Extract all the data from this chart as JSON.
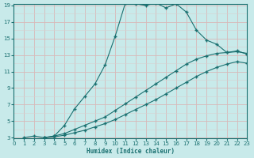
{
  "xlabel": "Humidex (Indice chaleur)",
  "xlim": [
    0,
    23
  ],
  "ylim": [
    3,
    19
  ],
  "xticks": [
    0,
    1,
    2,
    3,
    4,
    5,
    6,
    7,
    8,
    9,
    10,
    11,
    12,
    13,
    14,
    15,
    16,
    17,
    18,
    19,
    20,
    21,
    22,
    23
  ],
  "yticks": [
    3,
    5,
    7,
    9,
    11,
    13,
    15,
    17,
    19
  ],
  "bg_color": "#c8eaea",
  "grid_major_color": "#d8b8b8",
  "grid_minor_color": "#d8d0d0",
  "line_color": "#1a7070",
  "line1_x": [
    1,
    2,
    3,
    4,
    5,
    6,
    7,
    8,
    9,
    10,
    11,
    12,
    13,
    14,
    15,
    16,
    17,
    18,
    19,
    20,
    21,
    22,
    23
  ],
  "line1_y": [
    3,
    3.2,
    3.0,
    3.2,
    4.5,
    6.5,
    8.0,
    9.5,
    11.8,
    15.3,
    19.3,
    19.2,
    19.0,
    19.3,
    18.7,
    19.2,
    18.2,
    16.0,
    14.8,
    14.3,
    13.3,
    13.5,
    13.1
  ],
  "line2_x": [
    3,
    4,
    5,
    6,
    7,
    8,
    9,
    10,
    11,
    12,
    13,
    14,
    15,
    16,
    17,
    18,
    19,
    20,
    21,
    22,
    23
  ],
  "line2_y": [
    3,
    3.2,
    3.5,
    4.0,
    4.5,
    5.0,
    5.5,
    6.3,
    7.1,
    7.9,
    8.7,
    9.5,
    10.3,
    11.1,
    11.9,
    12.5,
    12.9,
    13.2,
    13.3,
    13.4,
    13.2
  ],
  "line3_x": [
    3,
    4,
    5,
    6,
    7,
    8,
    9,
    10,
    11,
    12,
    13,
    14,
    15,
    16,
    17,
    18,
    19,
    20,
    21,
    22,
    23
  ],
  "line3_y": [
    3,
    3.1,
    3.3,
    3.6,
    3.9,
    4.3,
    4.7,
    5.2,
    5.8,
    6.4,
    7.0,
    7.6,
    8.3,
    9.0,
    9.7,
    10.4,
    11.0,
    11.5,
    11.9,
    12.2,
    12.0
  ]
}
